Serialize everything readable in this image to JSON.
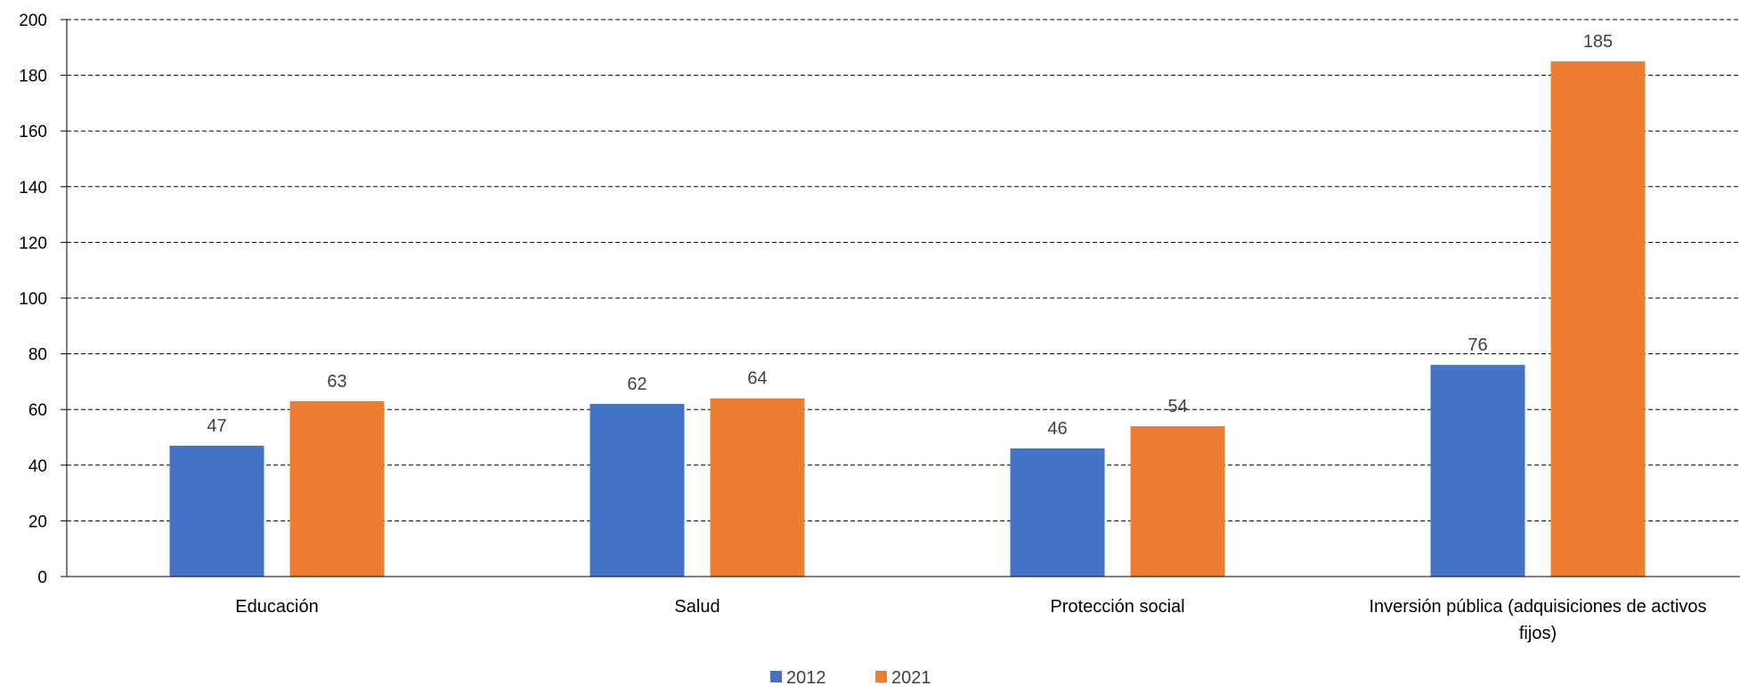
{
  "chart_data": {
    "type": "bar",
    "title": "",
    "xlabel": "",
    "ylabel": "",
    "ylim": [
      0,
      200
    ],
    "yticks": [
      "0",
      "20",
      "40",
      "60",
      "80",
      "100",
      "120",
      "140",
      "160",
      "180",
      "200"
    ],
    "grid": true,
    "legend_position": "bottom",
    "categories": [
      "Educación",
      "Salud",
      "Protección social",
      "Inversión pública (adquisiciones de activos fijos)"
    ],
    "category_lines": [
      [
        "Educación"
      ],
      [
        "Salud"
      ],
      [
        "Protección social"
      ],
      [
        "Inversión pública (adquisiciones de activos",
        "fijos)"
      ]
    ],
    "series": [
      {
        "name": "2012",
        "color": "#4472C4",
        "values": [
          47,
          62,
          46,
          76
        ],
        "labels": [
          "47",
          "62",
          "46",
          "76"
        ]
      },
      {
        "name": "2021",
        "color": "#ED7D31",
        "values": [
          63,
          64,
          54,
          185
        ],
        "labels": [
          "63",
          "64",
          "54",
          "185"
        ]
      }
    ]
  }
}
